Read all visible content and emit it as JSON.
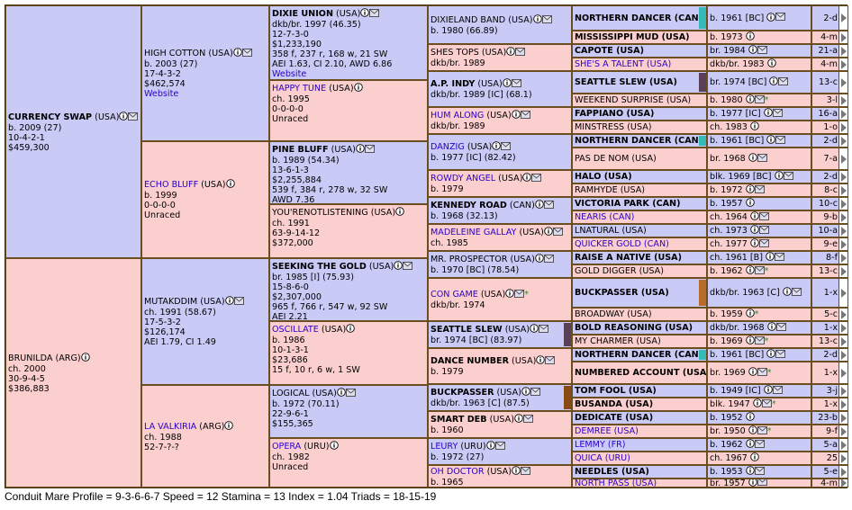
{
  "gen1": [
    {
      "name": "CURRENCY SWAP",
      "cty": "(USA)",
      "lines": [
        "b. 2009 (27)",
        "10-4-2-1",
        "$459,300"
      ],
      "bold": true
    },
    {
      "name": "BRUNILDA",
      "cty": "(ARG)",
      "lines": [
        "ch. 2000",
        "30-9-4-5",
        "$386,883"
      ]
    }
  ],
  "gen2": [
    {
      "name": "HIGH COTTON",
      "cty": "(USA)",
      "lines": [
        "b. 2003 (27)",
        "17-4-3-2",
        "$462,574"
      ],
      "web": "Website"
    },
    {
      "name": "ECHO BLUFF",
      "cty": "(USA)",
      "lines": [
        "b. 1999",
        "0-0-0-0",
        "Unraced"
      ],
      "link": true
    },
    {
      "name": "MUTAKDDIM",
      "cty": "(USA)",
      "lines": [
        "ch. 1991 (58.67)",
        "17-5-3-2",
        "$126,174",
        "AEI 1.79, CI 1.49"
      ]
    },
    {
      "name": "LA VALKIRIA",
      "cty": "(ARG)",
      "lines": [
        "ch. 1988",
        "52-7-?-?"
      ],
      "link": true
    }
  ],
  "gen3": [
    {
      "name": "DIXIE UNION",
      "cty": "(USA)",
      "lines": [
        "dkb/br. 1997 (46.35)",
        "12-7-3-0",
        "$1,233,190",
        "358 f, 237 r, 168 w, 21 SW",
        "AEI 1.63, CI 2.10, AWD 6.86"
      ],
      "web": "Website",
      "bold": true
    },
    {
      "name": "HAPPY TUNE",
      "cty": "(USA)",
      "lines": [
        "ch. 1995",
        "0-0-0-0",
        "Unraced"
      ],
      "link": true
    },
    {
      "name": "PINE BLUFF",
      "cty": "(USA)",
      "lines": [
        "b. 1989 (54.34)",
        "13-6-1-3",
        "$2,255,884",
        "539 f, 384 r, 278 w, 32 SW",
        "AWD 7.36"
      ],
      "bold": true
    },
    {
      "name": "YOU'RENOTLISTENING",
      "cty": "(USA)",
      "lines": [
        "ch. 1991",
        "63-9-14-12",
        "$372,000"
      ]
    },
    {
      "name": "SEEKING THE GOLD",
      "cty": "(USA)",
      "lines": [
        "br. 1985 [I] (75.93)",
        "15-8-6-0",
        "$2,307,000",
        "965 f, 766 r, 547 w, 92 SW",
        "AEI 2.21"
      ],
      "bold": true
    },
    {
      "name": "OSCILLATE",
      "cty": "(USA)",
      "lines": [
        "b. 1986",
        "10-1-3-1",
        "$23,686",
        "15 f, 10 r, 6 w, 1 SW"
      ],
      "link": true
    },
    {
      "name": "LOGICAL",
      "cty": "(USA)",
      "lines": [
        "b. 1972 (70.11)",
        "22-9-6-1",
        "$155,365"
      ]
    },
    {
      "name": "OPERA",
      "cty": "(URU)",
      "lines": [
        "ch. 1982",
        "Unraced"
      ],
      "link": true
    }
  ],
  "gen4": [
    {
      "name": "DIXIELAND BAND",
      "cty": "(USA)",
      "lines": [
        "b. 1980 (66.89)"
      ]
    },
    {
      "name": "SHES TOPS",
      "cty": "(USA)",
      "lines": [
        "dkb/br. 1989"
      ]
    },
    {
      "name": "A.P. INDY",
      "cty": "(USA)",
      "lines": [
        "dkb/br. 1989 [IC] (68.1)"
      ],
      "bold": true
    },
    {
      "name": "HUM ALONG",
      "cty": "(USA)",
      "lines": [
        "dkb/br. 1989"
      ],
      "link": true
    },
    {
      "name": "DANZIG",
      "cty": "(USA)",
      "lines": [
        "b. 1977 [IC] (82.42)"
      ],
      "link": true
    },
    {
      "name": "ROWDY ANGEL",
      "cty": "(USA)",
      "lines": [
        "b. 1979"
      ],
      "link": true
    },
    {
      "name": "KENNEDY ROAD",
      "cty": "(CAN)",
      "lines": [
        "b. 1968 (32.13)"
      ],
      "bold": true
    },
    {
      "name": "MADELEINE GALLAY",
      "cty": "(USA)",
      "lines": [
        "ch. 1985"
      ],
      "link": true
    },
    {
      "name": "MR. PROSPECTOR",
      "cty": "(USA)",
      "lines": [
        "b. 1970 [BC] (78.54)"
      ]
    },
    {
      "name": "CON GAME",
      "cty": "(USA)",
      "lines": [
        "dkb/br. 1974"
      ],
      "link": true,
      "star": true
    },
    {
      "name": "SEATTLE SLEW",
      "cty": "(USA)",
      "lines": [
        "br. 1974 [BC] (83.97)"
      ],
      "bold": true
    },
    {
      "name": "DANCE NUMBER",
      "cty": "(USA)",
      "lines": [
        "b. 1979"
      ],
      "bold": true
    },
    {
      "name": "BUCKPASSER",
      "cty": "(USA)",
      "lines": [
        "dkb/br. 1963 [C] (87.5)"
      ],
      "bold": true
    },
    {
      "name": "SMART DEB",
      "cty": "(USA)",
      "lines": [
        "b. 1960"
      ],
      "bold": true
    },
    {
      "name": "LEURY",
      "cty": "(URU)",
      "lines": [
        "b. 1972 (27)"
      ],
      "link": true
    },
    {
      "name": "OH DOCTOR",
      "cty": "(USA)",
      "lines": [
        "b. 1965"
      ],
      "link": true
    }
  ],
  "gen5": [
    {
      "name": "NORTHERN DANCER (CAN)",
      "info": "b. 1961 [BC]",
      "tail": "2-d",
      "bold": true,
      "color": "#36b9b9"
    },
    {
      "name": "MISSISSIPPI MUD (USA)",
      "info": "b. 1973",
      "tail": "4-m",
      "bold": true
    },
    {
      "name": "CAPOTE (USA)",
      "info": "br. 1984",
      "tail": "21-a",
      "bold": true
    },
    {
      "name": "SHE'S A TALENT (USA)",
      "info": "dkb/br. 1983",
      "tail": "4-m",
      "link": true
    },
    {
      "name": "SEATTLE SLEW (USA)",
      "info": "br. 1974 [BC]",
      "tail": "13-c",
      "bold": true,
      "color": "#5a3f5a"
    },
    {
      "name": "WEEKEND SURPRISE (USA)",
      "info": "b. 1980",
      "tail": "3-l",
      "star": true
    },
    {
      "name": "FAPPIANO (USA)",
      "info": "b. 1977 [IC]",
      "tail": "16-a",
      "bold": true
    },
    {
      "name": "MINSTRESS (USA)",
      "info": "ch. 1983",
      "tail": "1-o"
    },
    {
      "name": "NORTHERN DANCER (CAN)",
      "info": "b. 1961 [BC]",
      "tail": "2-d",
      "bold": true,
      "color": "#36b9b9"
    },
    {
      "name": "PAS DE NOM (USA)",
      "info": "br. 1968",
      "tail": "7-a"
    },
    {
      "name": "HALO (USA)",
      "info": "blk. 1969 [BC]",
      "tail": "2-d",
      "bold": true
    },
    {
      "name": "RAMHYDE (USA)",
      "info": "b. 1972",
      "tail": "8-c"
    },
    {
      "name": "VICTORIA PARK (CAN)",
      "info": "b. 1957",
      "tail": "10-c",
      "bold": true
    },
    {
      "name": "NEARIS (CAN)",
      "info": "ch. 1964",
      "tail": "9-b",
      "link": true
    },
    {
      "name": "LNATURAL (USA)",
      "info": "ch. 1973",
      "tail": "10-a"
    },
    {
      "name": "QUICKER GOLD (CAN)",
      "info": "ch. 1977",
      "tail": "9-e",
      "link": true
    },
    {
      "name": "RAISE A NATIVE (USA)",
      "info": "ch. 1961 [B]",
      "tail": "8-f",
      "bold": true
    },
    {
      "name": "GOLD DIGGER (USA)",
      "info": "b. 1962",
      "tail": "13-c",
      "star": true
    },
    {
      "name": "BUCKPASSER (USA)",
      "info": "dkb/br. 1963 [C]",
      "tail": "1-x",
      "bold": true,
      "color": "#b86a2a",
      "double": true
    },
    {
      "name": "BROADWAY (USA)",
      "info": "b. 1959",
      "tail": "5-c",
      "star": true
    },
    {
      "name": "BOLD REASONING (USA)",
      "info": "dkb/br. 1968",
      "tail": "1-x",
      "bold": true
    },
    {
      "name": "MY CHARMER (USA)",
      "info": "b. 1969",
      "tail": "13-c",
      "star": true
    },
    {
      "name": "NORTHERN DANCER (CAN)",
      "info": "b. 1961 [BC]",
      "tail": "2-d",
      "bold": true,
      "color": "#36b9b9"
    },
    {
      "name": "NUMBERED ACCOUNT (USA)",
      "info": "br. 1969",
      "tail": "1-x",
      "bold": true,
      "star": true
    },
    {
      "name": "TOM FOOL (USA)",
      "info": "b. 1949 [IC]",
      "tail": "3-j",
      "bold": true
    },
    {
      "name": "BUSANDA (USA)",
      "info": "blk. 1947",
      "tail": "1-x",
      "bold": true,
      "star": true
    },
    {
      "name": "DEDICATE (USA)",
      "info": "b. 1952",
      "tail": "23-b",
      "bold": true
    },
    {
      "name": "DEMREE (USA)",
      "info": "br. 1950",
      "tail": "9-f",
      "link": true,
      "star": true
    },
    {
      "name": "LEMMY (FR)",
      "info": "b. 1962",
      "tail": "5-a",
      "link": true
    },
    {
      "name": "QUICA (URU)",
      "info": "ch. 1967",
      "tail": "25",
      "link": true
    },
    {
      "name": "NEEDLES (USA)",
      "info": "b. 1953",
      "tail": "5-e",
      "bold": true
    },
    {
      "name": "NORTH PASS (USA)",
      "info": "br. 1957",
      "tail": "4-m",
      "link": true
    }
  ],
  "footer": "Conduit Mare Profile = 9-3-6-6-7   Speed = 12   Stamina = 13   Index = 1.04   Triads = 18-15-19"
}
